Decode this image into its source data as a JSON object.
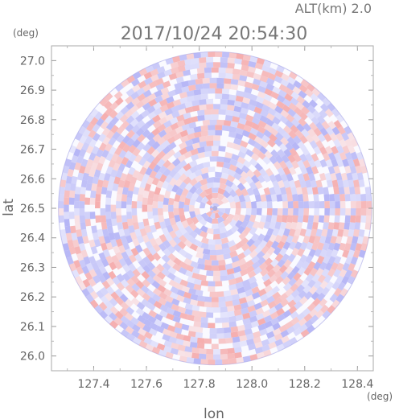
{
  "chart_data": {
    "type": "heatmap",
    "title": "2017/10/24 20:54:30",
    "subtitle": "ALT(km) 2.0",
    "xlabel": "lon",
    "ylabel": "lat",
    "xunit": "(deg)",
    "yunit": "(deg)",
    "xlim": [
      127.24,
      128.46
    ],
    "ylim": [
      25.95,
      27.05
    ],
    "xticks": [
      "127.4",
      "127.6",
      "127.8",
      "128.0",
      "128.2",
      "128.4"
    ],
    "yticks": [
      "26.0",
      "26.1",
      "26.2",
      "26.3",
      "26.4",
      "26.5",
      "26.6",
      "26.7",
      "26.8",
      "26.9",
      "27.0"
    ],
    "center": {
      "lon": 127.86,
      "lat": 26.5
    },
    "radius_lat_deg": 0.53,
    "colors": {
      "positive": "#f4a0a0",
      "negative": "#a9a9f4",
      "axis": "#999999",
      "text": "#666666"
    }
  }
}
